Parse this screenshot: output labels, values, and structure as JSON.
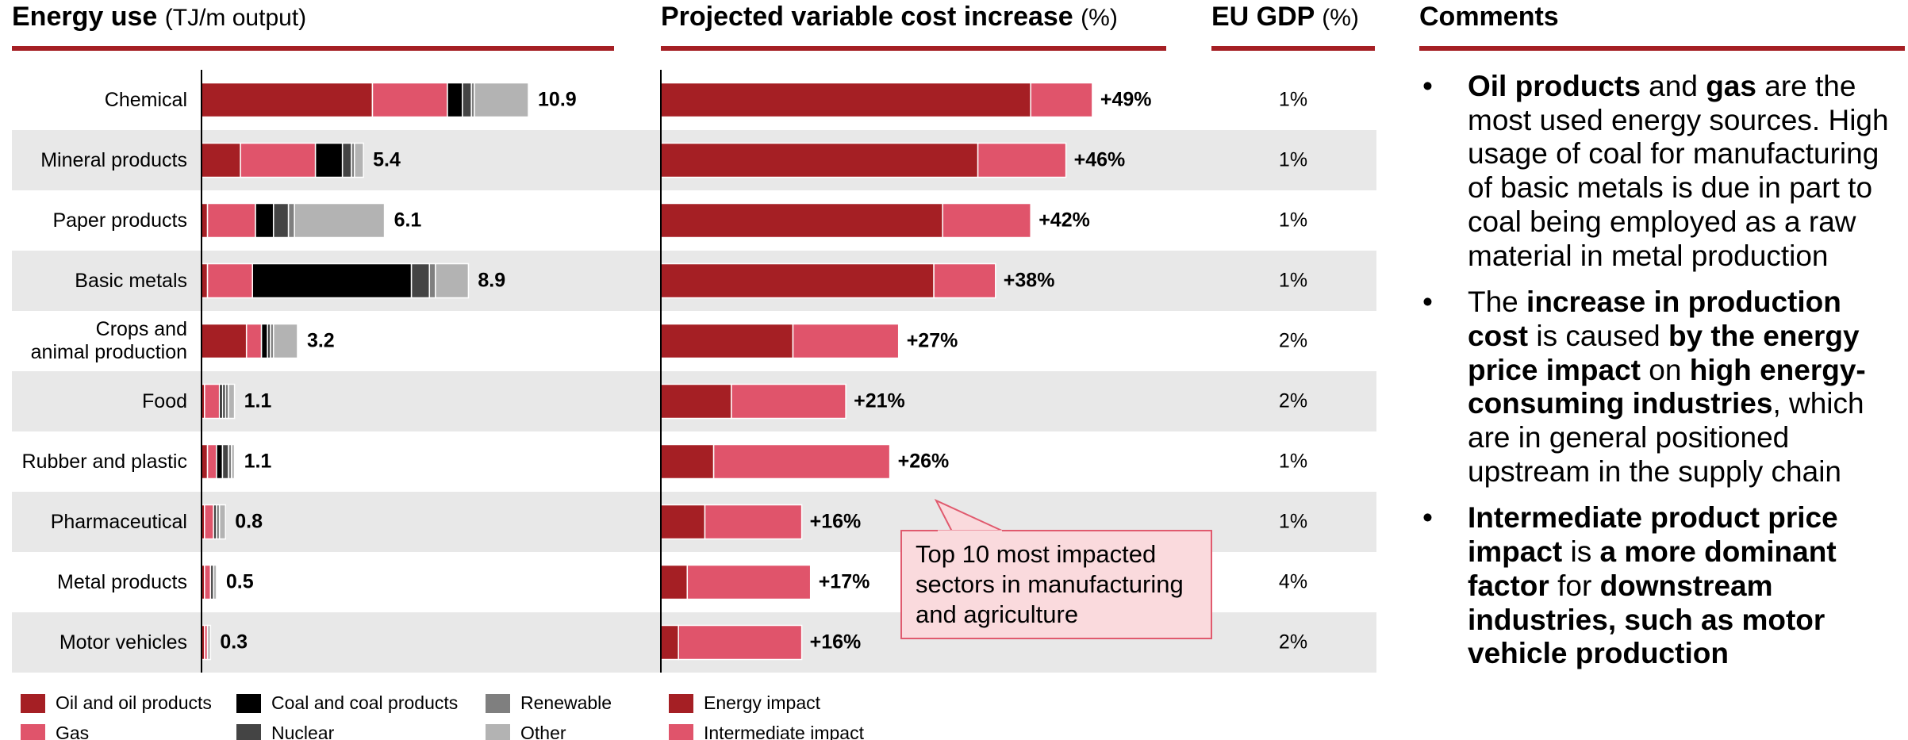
{
  "chart_data": [
    {
      "type": "bar",
      "orientation": "horizontal",
      "stacked": true,
      "title": "Energy use",
      "unit": "(TJ/m output)",
      "categories": [
        "Chemical",
        "Mineral products",
        "Paper products",
        "Basic metals",
        "Crops and\nanimal production",
        "Food",
        "Rubber and plastic",
        "Pharmaceutical",
        "Metal products",
        "Motor vehicles"
      ],
      "series": [
        {
          "name": "Oil and oil products",
          "color": "#a51f24",
          "values": [
            5.7,
            1.3,
            0.2,
            0.2,
            1.5,
            0.1,
            0.2,
            0.1,
            0.1,
            0.1
          ]
        },
        {
          "name": "Gas",
          "color": "#e0546b",
          "values": [
            2.5,
            2.5,
            1.6,
            1.5,
            0.5,
            0.5,
            0.3,
            0.3,
            0.2,
            0.1
          ]
        },
        {
          "name": "Coal and coal products",
          "color": "#000000",
          "values": [
            0.5,
            0.9,
            0.6,
            5.3,
            0.2,
            0.1,
            0.2,
            0,
            0,
            0
          ]
        },
        {
          "name": "Nuclear",
          "color": "#444444",
          "values": [
            0.3,
            0.3,
            0.5,
            0.6,
            0.1,
            0.1,
            0.2,
            0.1,
            0.1,
            0
          ]
        },
        {
          "name": "Renewable",
          "color": "#7f7f7f",
          "values": [
            0.1,
            0.1,
            0.2,
            0.2,
            0.1,
            0.1,
            0.1,
            0.1,
            0,
            0
          ]
        },
        {
          "name": "Other",
          "color": "#b3b3b3",
          "values": [
            1.8,
            0.3,
            3.0,
            1.1,
            0.8,
            0.2,
            0.1,
            0.2,
            0.1,
            0.1
          ]
        }
      ],
      "totals": [
        10.9,
        5.4,
        6.1,
        8.9,
        3.2,
        1.1,
        1.1,
        0.8,
        0.5,
        0.3
      ]
    },
    {
      "type": "bar",
      "orientation": "horizontal",
      "stacked": true,
      "title": "Projected variable cost increase",
      "unit": "(%)",
      "series": [
        {
          "name": "Energy impact",
          "color": "#a51f24",
          "values": [
            42,
            36,
            32,
            31,
            15,
            8,
            6,
            5,
            3,
            2
          ]
        },
        {
          "name": "Intermediate impact",
          "color": "#e0546b",
          "values": [
            7,
            10,
            10,
            7,
            12,
            13,
            20,
            11,
            14,
            14
          ]
        }
      ],
      "totals": [
        49,
        46,
        42,
        38,
        27,
        21,
        26,
        16,
        17,
        16
      ],
      "total_labels": [
        "+49%",
        "+46%",
        "+42%",
        "+38%",
        "+27%",
        "+21%",
        "+26%",
        "+16%",
        "+17%",
        "+16%"
      ],
      "annotation": "Top 10 most impacted sectors in manufacturing and agriculture"
    }
  ],
  "gdp": {
    "title": "EU GDP",
    "unit": "(%)",
    "values": [
      1,
      1,
      1,
      1,
      2,
      2,
      1,
      1,
      4,
      2
    ],
    "value_labels": [
      "1%",
      "1%",
      "1%",
      "1%",
      "2%",
      "2%",
      "1%",
      "1%",
      "4%",
      "2%"
    ]
  },
  "comments": {
    "title": "Comments",
    "bullets": [
      [
        {
          "text": "Oil products",
          "bold": true
        },
        {
          "text": " and ",
          "bold": false
        },
        {
          "text": "gas",
          "bold": true
        },
        {
          "text": " are the most used energy sources. High usage of coal for manufacturing of basic metals is due in part to coal being employed as a raw material in metal production",
          "bold": false
        }
      ],
      [
        {
          "text": "The ",
          "bold": false
        },
        {
          "text": "increase in production cost",
          "bold": true
        },
        {
          "text": " is caused ",
          "bold": false
        },
        {
          "text": "by the energy price impact",
          "bold": true
        },
        {
          "text": " on ",
          "bold": false
        },
        {
          "text": "high energy-consuming industries",
          "bold": true
        },
        {
          "text": ", which are in general positioned upstream in the supply chain",
          "bold": false
        }
      ],
      [
        {
          "text": "Intermediate product price impact",
          "bold": true
        },
        {
          "text": " is ",
          "bold": false
        },
        {
          "text": "a more dominant factor",
          "bold": true
        },
        {
          "text": " for ",
          "bold": false
        },
        {
          "text": "downstream industries, such as motor vehicle production",
          "bold": true
        }
      ]
    ]
  }
}
